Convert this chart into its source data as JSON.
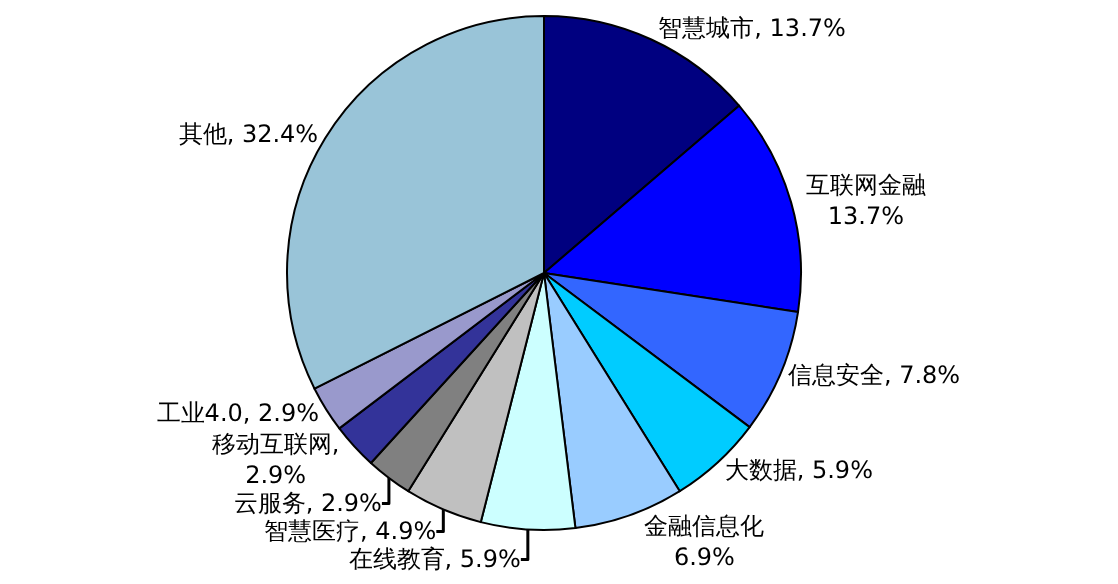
{
  "chart_data": {
    "type": "pie",
    "categories": [
      "智慧城市",
      "互联网金融",
      "信息安全",
      "大数据",
      "金融信息化",
      "在线教育",
      "智慧医疗",
      "云服务",
      "移动互联网",
      "工业4.0",
      "其他"
    ],
    "values": [
      13.7,
      13.7,
      7.8,
      5.9,
      6.9,
      5.9,
      4.9,
      2.9,
      2.9,
      2.9,
      32.4
    ],
    "colors": [
      "#000080",
      "#0000ff",
      "#3366ff",
      "#00ccff",
      "#99ccff",
      "#ccffff",
      "#c0c0c0",
      "#808080",
      "#333399",
      "#9999cc",
      "#99c4d8"
    ],
    "value_labels": [
      ", 13.7%",
      "\n13.7%",
      ", 7.8%",
      ", 5.9%",
      "\n6.9%",
      ", 5.9%",
      ", 4.9%",
      ", 2.9%",
      ",\n2.9%",
      ", 2.9%",
      ", 32.4%"
    ]
  }
}
